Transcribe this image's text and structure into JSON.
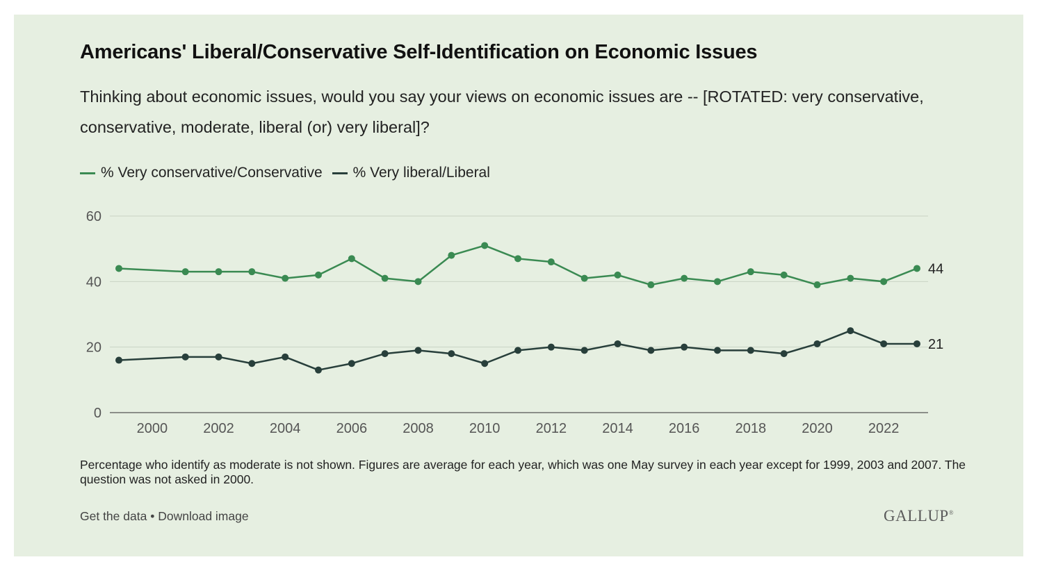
{
  "title": "Americans' Liberal/Conservative Self-Identification on Economic Issues",
  "subtitle": "Thinking about economic issues, would you say your views on economic issues are -- [ROTATED: very conservative, conservative, moderate, liberal (or) very liberal]?",
  "footnote": "Percentage who identify as moderate is not shown. Figures are average for each year, which was one May survey in each year except for 1999, 2003 and 2007. The question was not asked in 2000.",
  "links": {
    "get_data": "Get the data",
    "separator": "•",
    "download": "Download image"
  },
  "brand": {
    "name": "GALLUP",
    "mark": "®"
  },
  "colors": {
    "background": "#e6efe1",
    "conservative": "#3a8a52",
    "liberal": "#283f3b",
    "grid": "#c9d3c4"
  },
  "chart_data": {
    "type": "line",
    "x": [
      1999,
      2001,
      2002,
      2003,
      2004,
      2005,
      2006,
      2007,
      2008,
      2009,
      2010,
      2011,
      2012,
      2013,
      2014,
      2015,
      2016,
      2017,
      2018,
      2019,
      2020,
      2021,
      2022,
      2023
    ],
    "series": [
      {
        "name": "% Very conservative/Conservative",
        "color": "#3a8a52",
        "values": [
          44,
          43,
          43,
          43,
          41,
          42,
          47,
          41,
          40,
          48,
          51,
          47,
          46,
          41,
          42,
          39,
          41,
          40,
          43,
          42,
          39,
          41,
          40,
          44
        ],
        "end_label": "44"
      },
      {
        "name": "% Very liberal/Liberal",
        "color": "#283f3b",
        "values": [
          16,
          17,
          17,
          15,
          17,
          13,
          15,
          18,
          19,
          18,
          15,
          19,
          20,
          19,
          21,
          19,
          20,
          19,
          19,
          18,
          21,
          25,
          21,
          21
        ],
        "end_label": "21"
      }
    ],
    "xticks": [
      2000,
      2002,
      2004,
      2006,
      2008,
      2010,
      2012,
      2014,
      2016,
      2018,
      2020,
      2022
    ],
    "xtick_labels": [
      "2000",
      "2002",
      "2004",
      "2006",
      "2008",
      "2010",
      "2012",
      "2014",
      "2016",
      "2018",
      "2020",
      "2022"
    ],
    "yticks": [
      0,
      20,
      40,
      60
    ],
    "ytick_labels": [
      "0",
      "20",
      "40",
      "60"
    ],
    "ylim": [
      0,
      60
    ],
    "xlim": [
      1999,
      2023
    ],
    "grid": true,
    "legend_position": "top-left"
  }
}
